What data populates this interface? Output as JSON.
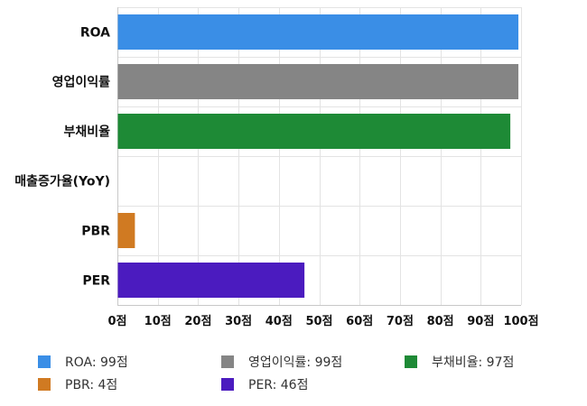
{
  "chart_data": {
    "type": "bar",
    "orientation": "horizontal",
    "categories": [
      "ROA",
      "영업이익률",
      "부채비율",
      "매출증가율(YoY)",
      "PBR",
      "PER"
    ],
    "values": [
      99,
      99,
      97,
      0,
      4,
      46
    ],
    "colors": [
      "#3a8ee6",
      "#858585",
      "#1e8a36",
      "#999999",
      "#d07a22",
      "#4b1bbf"
    ],
    "xlim": [
      0,
      100
    ],
    "x_ticks": [
      0,
      10,
      20,
      30,
      40,
      50,
      60,
      70,
      80,
      90,
      100
    ],
    "x_tick_labels": [
      "0점",
      "10점",
      "20점",
      "30점",
      "40점",
      "50점",
      "60점",
      "70점",
      "80점",
      "90점",
      "100점"
    ],
    "title": "",
    "xlabel": "",
    "ylabel": "",
    "grid": true,
    "legend_position": "bottom"
  },
  "legend": [
    {
      "label": "ROA: 99점",
      "color": "#3a8ee6"
    },
    {
      "label": "영업이익률: 99점",
      "color": "#858585"
    },
    {
      "label": "부채비율: 97점",
      "color": "#1e8a36"
    },
    {
      "label": "PBR: 4점",
      "color": "#d07a22"
    },
    {
      "label": "PER: 46점",
      "color": "#4b1bbf"
    }
  ]
}
